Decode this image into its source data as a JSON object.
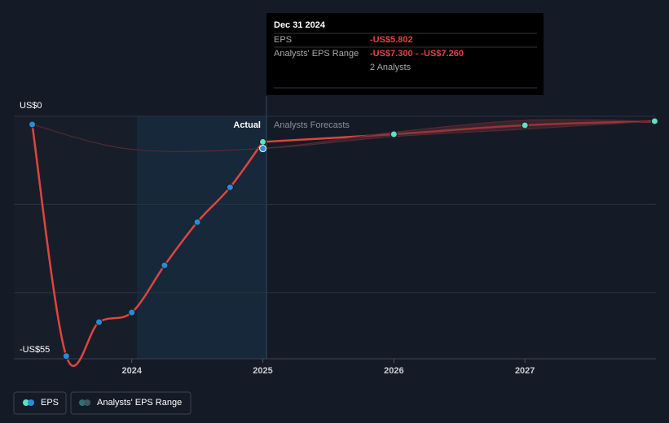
{
  "chart_data": {
    "type": "line",
    "y_axis_label_ticks": [
      {
        "value": 0,
        "label": "US$0"
      },
      {
        "value": -55,
        "label": "-US$55"
      }
    ],
    "ylim": [
      -55,
      0
    ],
    "yticks": [
      {
        "value": 0,
        "label": "US$0"
      },
      {
        "value": -55,
        "label": "-US$55"
      }
    ],
    "xlim": [
      2023.1,
      2028.0
    ],
    "xticks": [
      2024,
      2025,
      2026,
      2027
    ],
    "grid": true,
    "divider_labels": [
      "Actual",
      "Analysts Forecasts"
    ],
    "series": [
      {
        "name": "EPS",
        "color": "#e0443f",
        "marker_color": "#2a8cd8",
        "x": [
          2023.24,
          2023.5,
          2023.75,
          2024.0,
          2024.25,
          2024.5,
          2024.75,
          2025.0
        ],
        "values": [
          -1.85,
          -54.4,
          -46.7,
          -44.5,
          -33.8,
          -24.0,
          -16.1,
          -5.802
        ]
      },
      {
        "name": "EPS",
        "color": "#e0443f",
        "marker_color": "#5ce0c8",
        "x": [
          2025.0,
          2026.0,
          2027.0,
          2027.99
        ],
        "values": [
          -5.802,
          -4.06,
          -2.03,
          -1.1
        ]
      },
      {
        "name": "Analysts' EPS Range",
        "color": "#5a2a33",
        "x": [
          2023.24,
          2024.0,
          2025.0,
          2026.0,
          2027.0,
          2027.99
        ],
        "low": [
          -1.85,
          -7.5,
          -7.3,
          -4.6,
          -2.9,
          -1.1
        ],
        "high": [
          -1.85,
          -7.5,
          -7.26,
          -3.6,
          -0.9,
          -1.1
        ]
      }
    ],
    "tooltip": {
      "date": "Dec 31 2024",
      "rows": [
        [
          "EPS",
          "-US$5.802"
        ],
        [
          "Analysts' EPS Range",
          "-US$7.300 - -US$7.260"
        ],
        [
          "",
          "2 Analysts"
        ]
      ]
    },
    "legend": [
      "EPS",
      "Analysts' EPS Range"
    ]
  }
}
